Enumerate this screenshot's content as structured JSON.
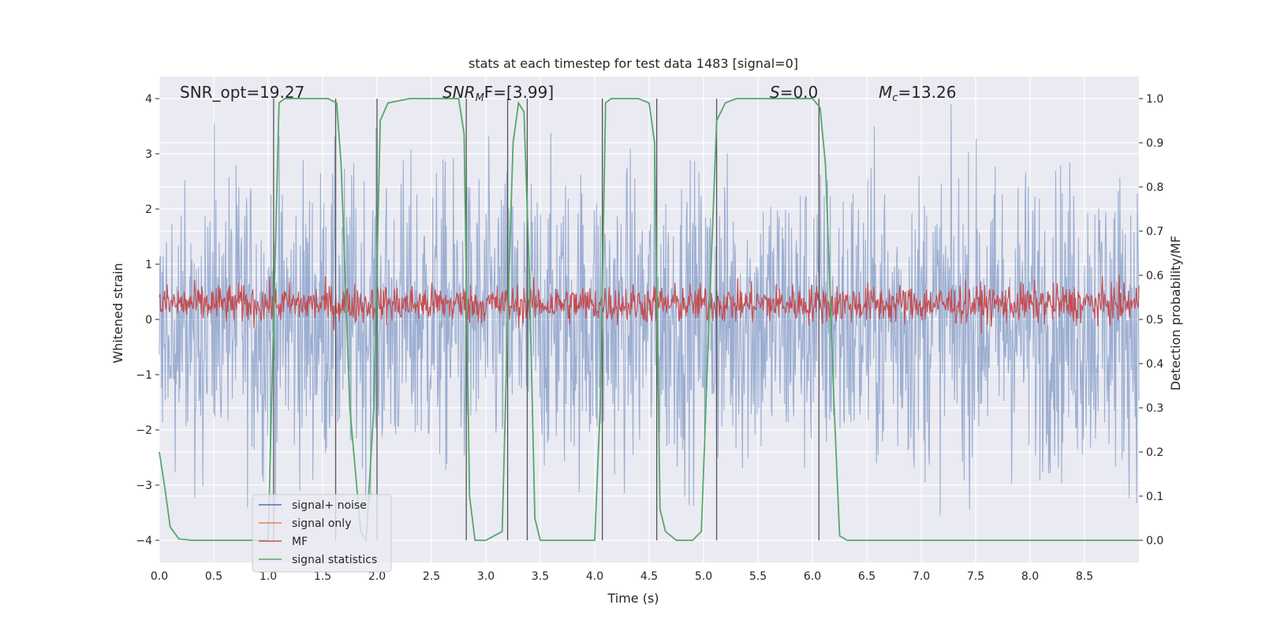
{
  "chart_data": {
    "type": "line",
    "title": "stats at each timestep for test data 1483 [signal=0]",
    "xlabel": "Time (s)",
    "ylabel": "Whitened strain",
    "y2label": "Detection probability/MF",
    "xlim": [
      0.0,
      9.0
    ],
    "ylim": [
      -4.4,
      4.4
    ],
    "y2lim": [
      -0.05,
      1.05
    ],
    "xticks": [
      "0.0",
      "0.5",
      "1.0",
      "1.5",
      "2.0",
      "2.5",
      "3.0",
      "3.5",
      "4.0",
      "4.5",
      "5.0",
      "5.5",
      "6.0",
      "6.5",
      "7.0",
      "7.5",
      "8.0",
      "8.5"
    ],
    "yticks": [
      "4",
      "3",
      "2",
      "1",
      "0",
      "−1",
      "−2",
      "−3",
      "−4"
    ],
    "y2ticks": [
      "1.0",
      "0.9",
      "0.8",
      "0.7",
      "0.6",
      "0.5",
      "0.4",
      "0.3",
      "0.2",
      "0.1",
      "0.0"
    ],
    "annotations": {
      "snr_opt": "SNR_opt=19.27",
      "snr_mf_prefix": "SNR",
      "snr_mf_sub": "M",
      "snr_mf_suffix": "F=[3.99]",
      "s_label": "S",
      "s_value": "=0.0",
      "mc_label": "M",
      "mc_sub": "c",
      "mc_value": "=13.26"
    },
    "legend": {
      "placement": "lower-left",
      "entries": [
        {
          "label": "signal+ noise",
          "color": "#4c72b0"
        },
        {
          "label": "signal only",
          "color": "#dd8452"
        },
        {
          "label": "MF",
          "color": "#c44e52"
        },
        {
          "label": "signal statistics",
          "color": "#55a868"
        }
      ]
    },
    "series": [
      {
        "name": "signal+ noise",
        "color": "#4c72b0",
        "description": "whitened strain noise, amplitude about ±3.5",
        "amplitude": 3.2
      },
      {
        "name": "signal only",
        "color": "#dd8452",
        "values": []
      },
      {
        "name": "MF",
        "color": "#c44e52",
        "baseline_axis2": 0.535,
        "amplitude_axis2": 0.04
      },
      {
        "name": "signal statistics",
        "color": "#55a868",
        "axis": "right",
        "x": [
          0.0,
          0.05,
          0.1,
          0.18,
          0.3,
          0.5,
          0.8,
          1.0,
          1.05,
          1.1,
          1.15,
          1.25,
          1.4,
          1.55,
          1.63,
          1.67,
          1.75,
          1.85,
          1.9,
          1.97,
          2.03,
          2.1,
          2.3,
          2.6,
          2.75,
          2.8,
          2.85,
          2.9,
          3.0,
          3.15,
          3.2,
          3.25,
          3.3,
          3.35,
          3.4,
          3.45,
          3.5,
          3.6,
          3.8,
          4.0,
          4.05,
          4.1,
          4.15,
          4.2,
          4.3,
          4.4,
          4.5,
          4.55,
          4.6,
          4.65,
          4.75,
          4.9,
          4.98,
          5.05,
          5.12,
          5.2,
          5.3,
          5.5,
          5.8,
          6.0,
          6.07,
          6.12,
          6.2,
          6.25,
          6.32,
          6.4,
          7.0,
          8.0,
          9.0
        ],
        "y": [
          0.2,
          0.12,
          0.03,
          0.003,
          0.0,
          0.0,
          0.0,
          0.0,
          0.5,
          0.99,
          1.0,
          1.0,
          1.0,
          1.0,
          0.99,
          0.85,
          0.3,
          0.02,
          0.0,
          0.3,
          0.95,
          0.99,
          1.0,
          1.0,
          1.0,
          0.92,
          0.1,
          0.0,
          0.0,
          0.02,
          0.5,
          0.9,
          0.99,
          0.97,
          0.6,
          0.05,
          0.0,
          0.0,
          0.0,
          0.0,
          0.3,
          0.99,
          1.0,
          1.0,
          1.0,
          1.0,
          0.99,
          0.9,
          0.07,
          0.02,
          0.0,
          0.0,
          0.02,
          0.5,
          0.95,
          0.99,
          1.0,
          1.0,
          1.0,
          1.0,
          0.98,
          0.85,
          0.3,
          0.01,
          0.0,
          0.0,
          0.0,
          0.0,
          0.0
        ]
      }
    ],
    "vertical_markers": [
      1.05,
      1.62,
      2.0,
      2.82,
      3.2,
      3.38,
      4.07,
      4.57,
      5.12,
      6.06
    ]
  }
}
